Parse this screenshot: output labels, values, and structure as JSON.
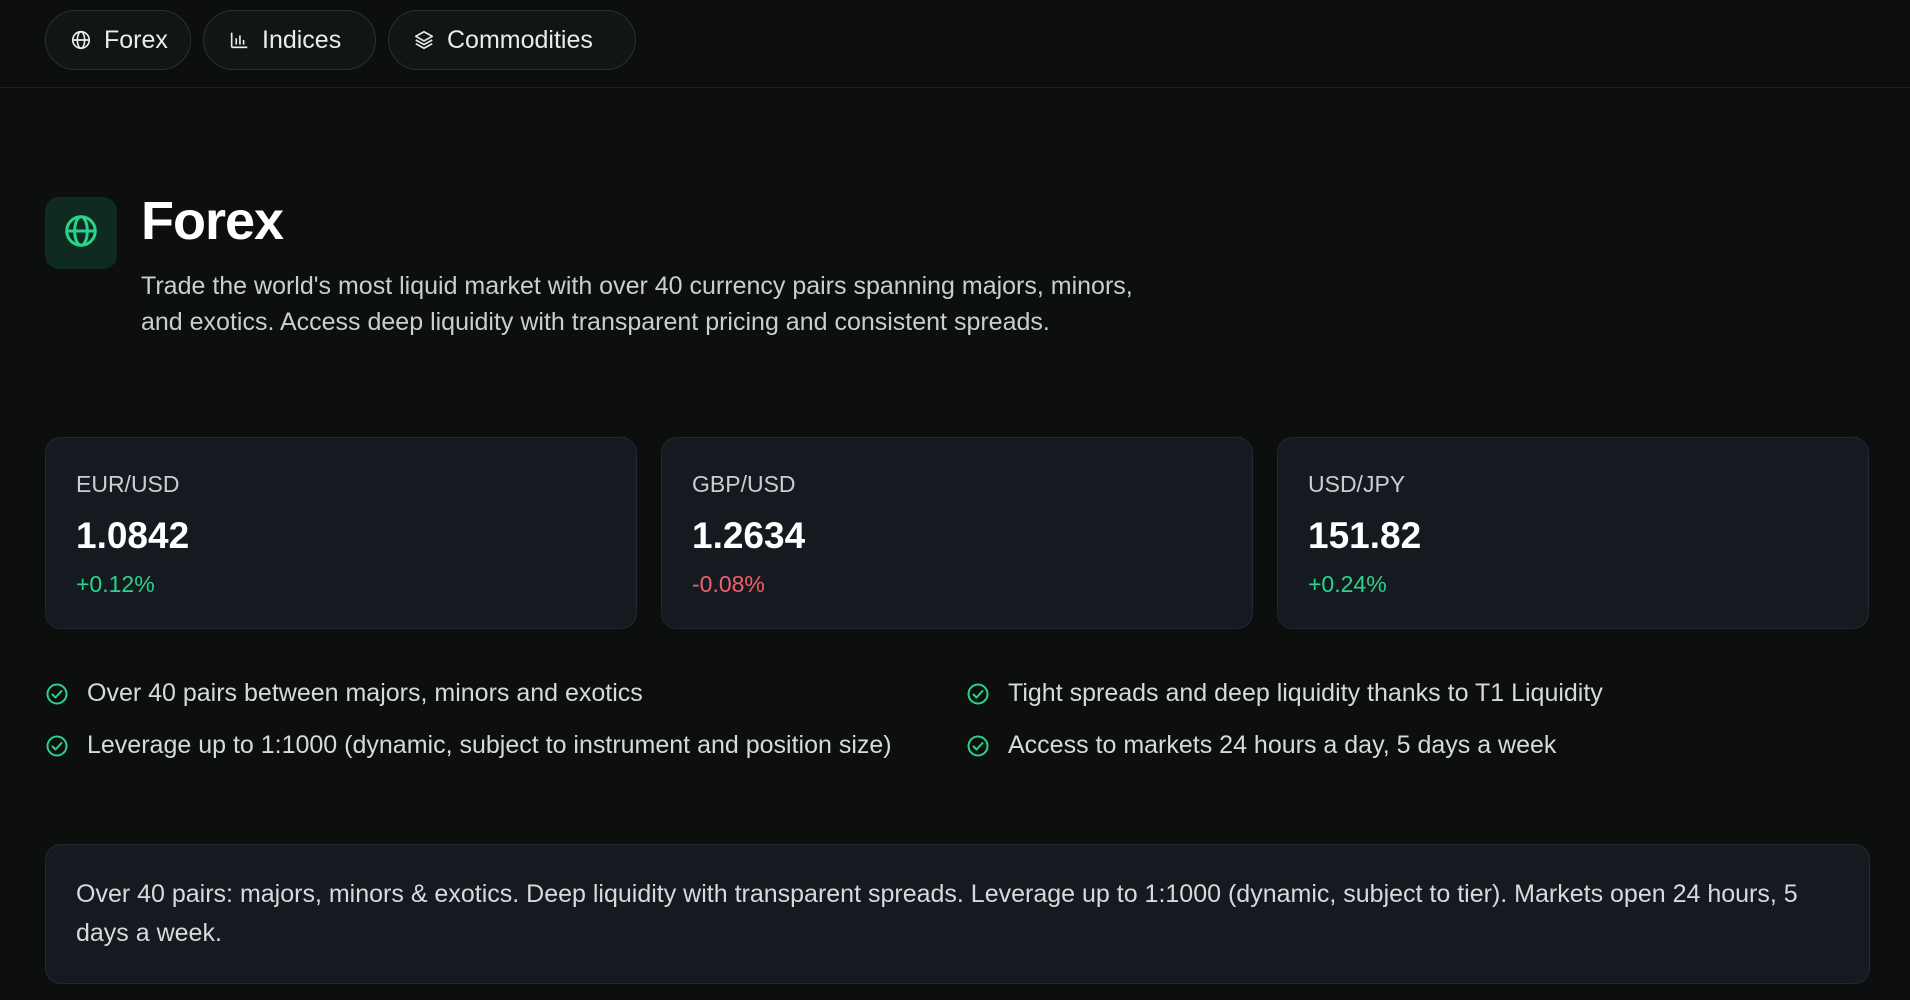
{
  "tabs": [
    {
      "label": "Forex",
      "icon": "globe-icon"
    },
    {
      "label": "Indices",
      "icon": "bar-chart-icon"
    },
    {
      "label": "Commodities",
      "icon": "layers-icon"
    }
  ],
  "hero": {
    "icon": "globe-icon",
    "title": "Forex",
    "description": "Trade the world's most liquid market with over 40 currency pairs spanning majors, minors, and exotics. Access deep liquidity with transparent pricing and consistent spreads."
  },
  "quotes": [
    {
      "pair": "EUR/USD",
      "price": "1.0842",
      "change": "+0.12%",
      "direction": "up"
    },
    {
      "pair": "GBP/USD",
      "price": "1.2634",
      "change": "-0.08%",
      "direction": "down"
    },
    {
      "pair": "USD/JPY",
      "price": "151.82",
      "change": "+0.24%",
      "direction": "up"
    }
  ],
  "features": [
    "Over 40 pairs between majors, minors and exotics",
    "Tight spreads and deep liquidity thanks to T1 Liquidity",
    "Leverage up to 1:1000 (dynamic, subject to instrument and position size)",
    "Access to markets 24 hours a day, 5 days a week"
  ],
  "summary": "Over 40 pairs: majors, minors & exotics. Deep liquidity with transparent spreads. Leverage up to 1:1000 (dynamic, subject to tier). Markets open 24 hours, 5 days a week.",
  "colors": {
    "accent": "#2ad38b",
    "positive": "#2ad38b",
    "negative": "#f0606a",
    "background": "#0c0f0e",
    "card": "#151a20"
  }
}
